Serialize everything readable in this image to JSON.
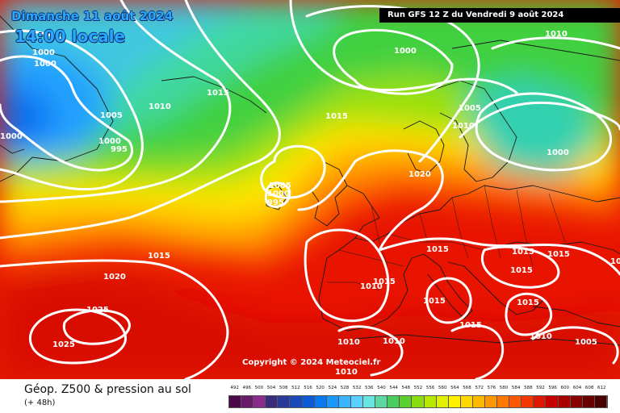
{
  "header": {
    "date_title": "Dimanche 11 août 2024",
    "time_title": "14:00 locale",
    "run_info": "Run GFS 12 Z du Vendredi 9 août 2024"
  },
  "copyright": "Copyright © 2024 Meteociel.fr",
  "footer": {
    "parameter": "Géop. Z500 & pression au sol",
    "lead_time": "(+ 48h)"
  },
  "isobar_labels": [
    "1000",
    "1000",
    "1000",
    "1005",
    "1000",
    "995",
    "1010",
    "1015",
    "1000",
    "1005",
    "1010",
    "1010",
    "1015",
    "1000",
    "1005",
    "1000",
    "995",
    "1020",
    "1015",
    "1020",
    "1025",
    "1025",
    "1015",
    "1015",
    "1010",
    "1015",
    "1015",
    "1015",
    "1015",
    "1015",
    "1015",
    "1010",
    "1010",
    "1010",
    "1005",
    "1010",
    "1010"
  ],
  "colorscale": {
    "ticks": [
      "492",
      "496",
      "500",
      "504",
      "508",
      "512",
      "516",
      "520",
      "524",
      "528",
      "532",
      "536",
      "540",
      "544",
      "548",
      "552",
      "556",
      "560",
      "564",
      "568",
      "572",
      "576",
      "580",
      "584",
      "588",
      "592",
      "596",
      "600",
      "604",
      "608",
      "612"
    ],
    "colors": [
      "#4a0a4a",
      "#6a1a6a",
      "#8a2a8a",
      "#3a2a7a",
      "#2a3a9a",
      "#1a4aba",
      "#0a5ada",
      "#0a78f0",
      "#1a98ff",
      "#3ab4ff",
      "#5ad0ff",
      "#6ae4e0",
      "#5ad8a0",
      "#4acc60",
      "#5ad030",
      "#8adc10",
      "#b8e800",
      "#e0f000",
      "#fff000",
      "#ffd800",
      "#ffb800",
      "#ff9800",
      "#ff7800",
      "#ff5800",
      "#f03800",
      "#e01800",
      "#c80000",
      "#a80000",
      "#880000",
      "#680000",
      "#480000"
    ]
  }
}
